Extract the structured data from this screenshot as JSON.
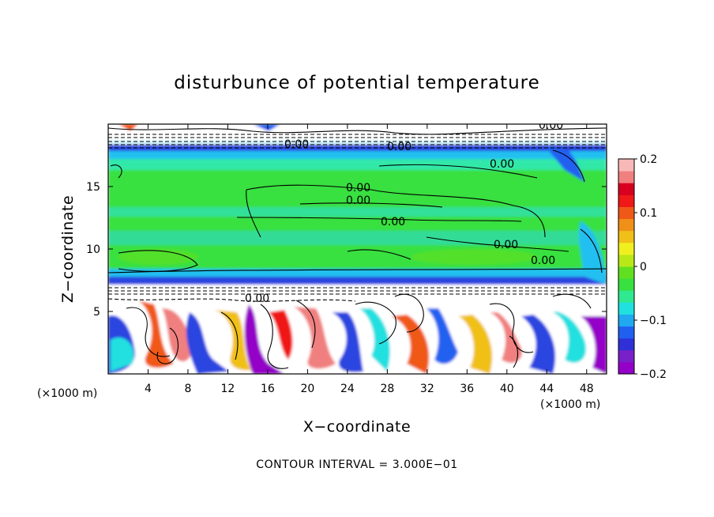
{
  "chart_data": {
    "type": "heatmap",
    "title": "disturbunce of potential temperature",
    "xlabel": "X−coordinate",
    "ylabel": "Z−coordinate",
    "x_unit_left": "(×1000 m)",
    "x_unit_right": "(×1000 m)",
    "xlim": [
      0,
      50
    ],
    "ylim": [
      0,
      20
    ],
    "x_ticks": [
      "4",
      "8",
      "12",
      "16",
      "20",
      "24",
      "28",
      "32",
      "36",
      "40",
      "44",
      "48"
    ],
    "x_tick_values": [
      4,
      8,
      12,
      16,
      20,
      24,
      28,
      32,
      36,
      40,
      44,
      48
    ],
    "y_ticks": [
      "5",
      "10",
      "15"
    ],
    "y_tick_values": [
      5,
      10,
      15
    ],
    "colorbar": {
      "min": -0.2,
      "max": 0.2,
      "tick_labels": [
        "0.2",
        "0.1",
        "0",
        "−0.1",
        "−0.2"
      ],
      "tick_values": [
        0.2,
        0.1,
        0,
        -0.1,
        -0.2
      ],
      "colors": [
        "#9400c8",
        "#7a20c8",
        "#3030d8",
        "#2060f0",
        "#20a8f0",
        "#20e0e0",
        "#30e890",
        "#38e040",
        "#60e020",
        "#b8e818",
        "#f0f020",
        "#f0c018",
        "#f09018",
        "#f05818",
        "#f01818",
        "#d80020",
        "#f08080",
        "#f8b8b8"
      ]
    },
    "contour_labels": [
      "0.00",
      "0.00",
      "0.00",
      "0.00",
      "0.00",
      "0.00",
      "0.00",
      "0.00",
      "0.00",
      "0.00"
    ],
    "contour_interval_text": "CONTOUR INTERVAL = 3.000E−01"
  }
}
